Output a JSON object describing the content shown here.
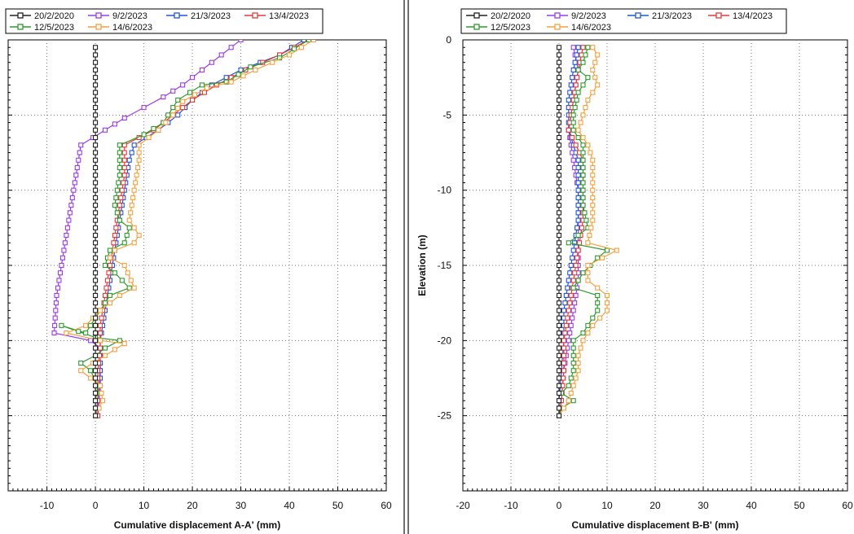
{
  "legend": [
    {
      "label": "20/2/2020",
      "color": "#222222"
    },
    {
      "label": "9/2/2023",
      "color": "#9b3be8"
    },
    {
      "label": "21/3/2023",
      "color": "#2255dd"
    },
    {
      "label": "13/4/2023",
      "color": "#e23b3b"
    },
    {
      "label": "12/5/2023",
      "color": "#2e9a2e"
    },
    {
      "label": "14/6/2023",
      "color": "#f4a040"
    }
  ],
  "chart_data": [
    {
      "type": "line",
      "xlabel": "Cumulative displacement A-A' (mm)",
      "ylabel": "",
      "xlim": [
        -18,
        60
      ],
      "ylim": [
        -30,
        0
      ],
      "x_ticks": [
        -10,
        0,
        10,
        20,
        30,
        40,
        50,
        60
      ],
      "grid": true,
      "show_y_ticks": false,
      "series": [
        {
          "name": "20/2/2020",
          "color": "#222222",
          "points": [
            [
              0,
              -0.5
            ],
            [
              0,
              -25
            ]
          ]
        },
        {
          "name": "9/2/2023",
          "color": "#9b3be8",
          "points": [
            [
              30,
              0
            ],
            [
              26,
              -1
            ],
            [
              22,
              -2
            ],
            [
              18,
              -3
            ],
            [
              14,
              -3.8
            ],
            [
              10,
              -4.5
            ],
            [
              6,
              -5.2
            ],
            [
              2,
              -6
            ],
            [
              -3,
              -7
            ],
            [
              -4,
              -9
            ],
            [
              -5,
              -11
            ],
            [
              -6,
              -13
            ],
            [
              -7,
              -15
            ],
            [
              -8,
              -17
            ],
            [
              -8.5,
              -19.5
            ],
            [
              -1,
              -20
            ],
            [
              1,
              -20.5
            ],
            [
              1,
              -22
            ],
            [
              0.5,
              -24
            ],
            [
              0,
              -25
            ]
          ]
        },
        {
          "name": "21/3/2023",
          "color": "#2255dd",
          "points": [
            [
              43,
              0
            ],
            [
              38,
              -1
            ],
            [
              30,
              -2
            ],
            [
              24,
              -3
            ],
            [
              20,
              -4
            ],
            [
              17,
              -5
            ],
            [
              13,
              -6
            ],
            [
              8,
              -7
            ],
            [
              7,
              -8
            ],
            [
              6,
              -10
            ],
            [
              5,
              -12
            ],
            [
              4,
              -14
            ],
            [
              3,
              -16
            ],
            [
              2,
              -18
            ],
            [
              1,
              -20
            ],
            [
              1,
              -21
            ],
            [
              1,
              -23
            ],
            [
              0.5,
              -25
            ]
          ]
        },
        {
          "name": "13/4/2023",
          "color": "#e23b3b",
          "points": [
            [
              44,
              0
            ],
            [
              38,
              -1
            ],
            [
              31,
              -2
            ],
            [
              25,
              -3
            ],
            [
              20,
              -4
            ],
            [
              16,
              -5
            ],
            [
              12,
              -6
            ],
            [
              6,
              -7
            ],
            [
              6,
              -9
            ],
            [
              5,
              -11
            ],
            [
              4,
              -13
            ],
            [
              3,
              -15
            ],
            [
              2,
              -17
            ],
            [
              1,
              -19
            ],
            [
              1,
              -20.5
            ],
            [
              0.5,
              -22
            ],
            [
              0.5,
              -25
            ]
          ]
        },
        {
          "name": "12/5/2023",
          "color": "#2e9a2e",
          "points": [
            [
              44,
              0
            ],
            [
              38,
              -1.2
            ],
            [
              32,
              -1.8
            ],
            [
              27,
              -2.8
            ],
            [
              22,
              -3
            ],
            [
              17,
              -4
            ],
            [
              14,
              -5.5
            ],
            [
              10,
              -6.3
            ],
            [
              5,
              -7
            ],
            [
              5,
              -9
            ],
            [
              4,
              -11
            ],
            [
              5,
              -12
            ],
            [
              7,
              -12.5
            ],
            [
              6,
              -13.5
            ],
            [
              3,
              -14
            ],
            [
              2,
              -15
            ],
            [
              4,
              -15.5
            ],
            [
              7,
              -16.5
            ],
            [
              3,
              -17
            ],
            [
              1,
              -18
            ],
            [
              -2,
              -19.5
            ],
            [
              -7,
              -19
            ],
            [
              0,
              -19.8
            ],
            [
              5,
              -20
            ],
            [
              2,
              -20.5
            ],
            [
              0,
              -21
            ],
            [
              -3,
              -21.5
            ],
            [
              -1,
              -22
            ],
            [
              0.5,
              -23
            ],
            [
              0,
              -24
            ],
            [
              0,
              -25
            ]
          ]
        },
        {
          "name": "14/6/2023",
          "color": "#f4a040",
          "points": [
            [
              45,
              0
            ],
            [
              40,
              -1
            ],
            [
              33,
              -2
            ],
            [
              28,
              -2.8
            ],
            [
              23,
              -3.2
            ],
            [
              18,
              -4.1
            ],
            [
              16,
              -5
            ],
            [
              13,
              -6
            ],
            [
              9,
              -7
            ],
            [
              9,
              -8
            ],
            [
              8,
              -10
            ],
            [
              7,
              -12
            ],
            [
              9,
              -13
            ],
            [
              8,
              -13.5
            ],
            [
              4,
              -14
            ],
            [
              3,
              -14.5
            ],
            [
              6,
              -15
            ],
            [
              8,
              -16.5
            ],
            [
              5,
              -17
            ],
            [
              1,
              -18
            ],
            [
              -2,
              -19
            ],
            [
              -6,
              -19.5
            ],
            [
              1,
              -20
            ],
            [
              6,
              -20.2
            ],
            [
              2,
              -21
            ],
            [
              -3,
              -22
            ],
            [
              1,
              -23
            ],
            [
              1.5,
              -24
            ],
            [
              0,
              -25
            ]
          ]
        }
      ]
    },
    {
      "type": "line",
      "xlabel": "Cumulative displacement B-B' (mm)",
      "ylabel": "Elevation (m)",
      "xlim": [
        -20,
        60
      ],
      "ylim": [
        -30,
        0
      ],
      "x_ticks": [
        -20,
        -10,
        0,
        10,
        20,
        30,
        40,
        50,
        60
      ],
      "y_ticks": [
        0,
        -5,
        -10,
        -15,
        -20,
        -25
      ],
      "grid": true,
      "show_y_ticks": true,
      "series": [
        {
          "name": "20/2/2020",
          "color": "#222222",
          "points": [
            [
              0,
              -0.5
            ],
            [
              0,
              -25
            ]
          ]
        },
        {
          "name": "9/2/2023",
          "color": "#9b3be8",
          "points": [
            [
              3,
              -0.5
            ],
            [
              4,
              -2
            ],
            [
              3,
              -4
            ],
            [
              2,
              -6
            ],
            [
              3,
              -8
            ],
            [
              4,
              -10
            ],
            [
              4,
              -12
            ],
            [
              4,
              -14
            ],
            [
              4,
              -16
            ],
            [
              3,
              -18
            ],
            [
              2,
              -20
            ],
            [
              1,
              -22
            ],
            [
              0.5,
              -24
            ],
            [
              0,
              -25
            ]
          ]
        },
        {
          "name": "21/3/2023",
          "color": "#2255dd",
          "points": [
            [
              4,
              -0.5
            ],
            [
              3,
              -2
            ],
            [
              2,
              -4
            ],
            [
              2,
              -6
            ],
            [
              4,
              -8
            ],
            [
              4,
              -10
            ],
            [
              4,
              -12
            ],
            [
              3,
              -14
            ],
            [
              2,
              -16
            ],
            [
              1,
              -18
            ],
            [
              1,
              -20
            ],
            [
              0.5,
              -22
            ],
            [
              0,
              -24
            ],
            [
              0,
              -25
            ]
          ]
        },
        {
          "name": "13/4/2023",
          "color": "#e23b3b",
          "points": [
            [
              5,
              -0.5
            ],
            [
              4,
              -2
            ],
            [
              3,
              -4
            ],
            [
              2,
              -6
            ],
            [
              5,
              -8
            ],
            [
              5,
              -10
            ],
            [
              5,
              -12
            ],
            [
              4,
              -14
            ],
            [
              3,
              -16
            ],
            [
              2,
              -18
            ],
            [
              1,
              -20
            ],
            [
              1,
              -22
            ],
            [
              0.5,
              -24
            ],
            [
              0,
              -25
            ]
          ]
        },
        {
          "name": "12/5/2023",
          "color": "#2e9a2e",
          "points": [
            [
              6,
              -0.5
            ],
            [
              5,
              -1.5
            ],
            [
              4,
              -2
            ],
            [
              6,
              -2.5
            ],
            [
              4,
              -3.5
            ],
            [
              3,
              -5
            ],
            [
              3,
              -6
            ],
            [
              5,
              -7
            ],
            [
              5,
              -9
            ],
            [
              5,
              -11
            ],
            [
              6,
              -12.5
            ],
            [
              4,
              -13
            ],
            [
              2,
              -13.5
            ],
            [
              10,
              -14
            ],
            [
              8,
              -14.5
            ],
            [
              5,
              -15.5
            ],
            [
              3,
              -16.5
            ],
            [
              8,
              -17
            ],
            [
              8,
              -18
            ],
            [
              5,
              -19.5
            ],
            [
              3,
              -20
            ],
            [
              3,
              -21
            ],
            [
              3,
              -22
            ],
            [
              2,
              -23
            ],
            [
              0.5,
              -23.5
            ],
            [
              3,
              -24
            ],
            [
              0.5,
              -24.5
            ],
            [
              0,
              -25
            ]
          ]
        },
        {
          "name": "14/6/2023",
          "color": "#f4a040",
          "points": [
            [
              7,
              -0.5
            ],
            [
              8,
              -1
            ],
            [
              7,
              -2
            ],
            [
              8,
              -3
            ],
            [
              6,
              -4
            ],
            [
              5,
              -5
            ],
            [
              4,
              -6
            ],
            [
              6,
              -7
            ],
            [
              7,
              -8
            ],
            [
              7,
              -10
            ],
            [
              7,
              -12
            ],
            [
              6,
              -13.5
            ],
            [
              12,
              -14
            ],
            [
              9,
              -14.5
            ],
            [
              6,
              -15
            ],
            [
              6,
              -16
            ],
            [
              10,
              -17
            ],
            [
              10,
              -18
            ],
            [
              7,
              -19
            ],
            [
              5,
              -20
            ],
            [
              4,
              -21
            ],
            [
              4,
              -22
            ],
            [
              3,
              -23
            ],
            [
              2,
              -24
            ],
            [
              0,
              -25
            ]
          ]
        }
      ]
    }
  ]
}
